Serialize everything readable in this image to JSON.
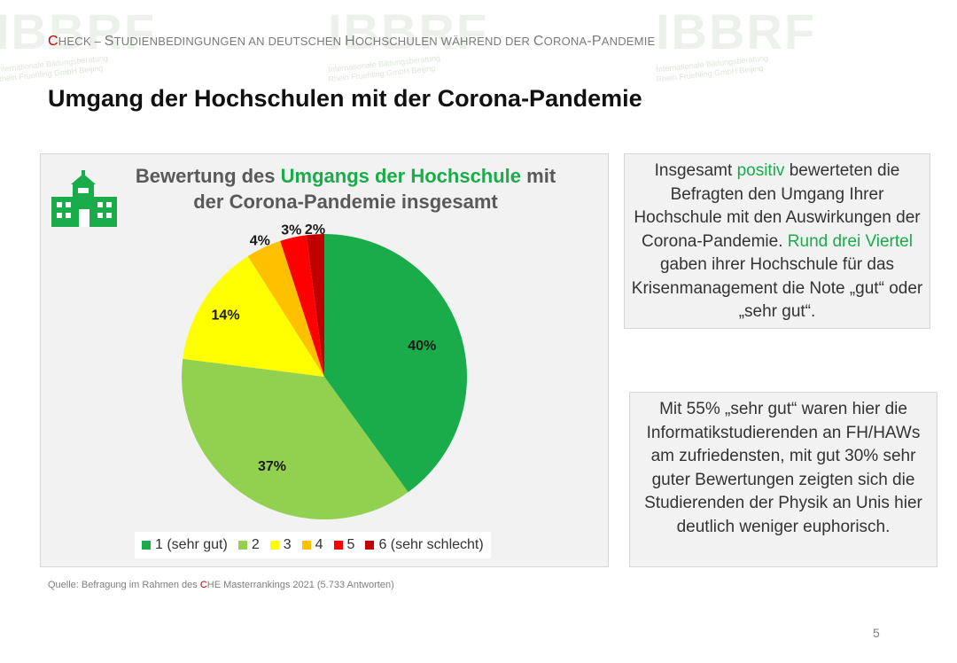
{
  "header": {
    "c1": "C",
    "c2": "HECK",
    "dash": " – ",
    "s1": "S",
    "s2": "TUDIENBEDINGUNGEN AN DEUTSCHEN ",
    "s3": "H",
    "s4": "OCHSCHULEN WÄHREND DER ",
    "s5": "C",
    "s6": "ORONA",
    "s7": "-P",
    "s8": "ANDEMIE"
  },
  "title": "Umgang der Hochschulen mit der Corona-Pandemie",
  "chart_title": {
    "line1_pre": "Bewertung des ",
    "line1_hl": "Umgangs der Hochschule",
    "line1_post": " mit",
    "line2": "der Corona-Pandemie insgesamt"
  },
  "chart_data": {
    "type": "pie",
    "title": "Bewertung des Umgangs der Hochschule mit der Corona-Pandemie insgesamt",
    "categories": [
      "1 (sehr gut)",
      "2",
      "3",
      "4",
      "5",
      "6 (sehr schlecht)"
    ],
    "values": [
      40,
      37,
      14,
      4,
      3,
      2
    ],
    "labels": [
      "40%",
      "37%",
      "14%",
      "4%",
      "3%",
      "2%"
    ],
    "colors": [
      "#1aab4b",
      "#92d050",
      "#ffff00",
      "#ffc000",
      "#ff0000",
      "#c00000"
    ],
    "legend_position": "bottom"
  },
  "textbox1": {
    "p1": "Insgesamt ",
    "p2": "positiv",
    "p3": " bewerteten die Befragten den Umgang Ihrer Hochschule mit den Auswirkungen der Corona-Pandemie. ",
    "p4": "Rund drei Viertel",
    "p5": " gaben ihrer Hochschule für das Krisenmanagement die Note „gut“ oder „sehr gut“."
  },
  "textbox2": "Mit 55% „sehr gut“ waren hier die Informatikstudierenden an FH/HAWs am zufriedensten, mit gut 30% sehr guter Bewertungen zeigten sich die Studierenden der Physik an Unis hier deutlich weniger euphorisch.",
  "source": {
    "pre": "Quelle: Befragung im Rahmen des ",
    "c": "C",
    "post": "HE Masterrankings 2021 (5.733 Antworten)"
  },
  "page_number": "5",
  "watermark": {
    "logo": "IBBRF",
    "line1": "Internationale Bildungsberatung",
    "line2": "Rhein Fruehling GmbH Beijing"
  }
}
